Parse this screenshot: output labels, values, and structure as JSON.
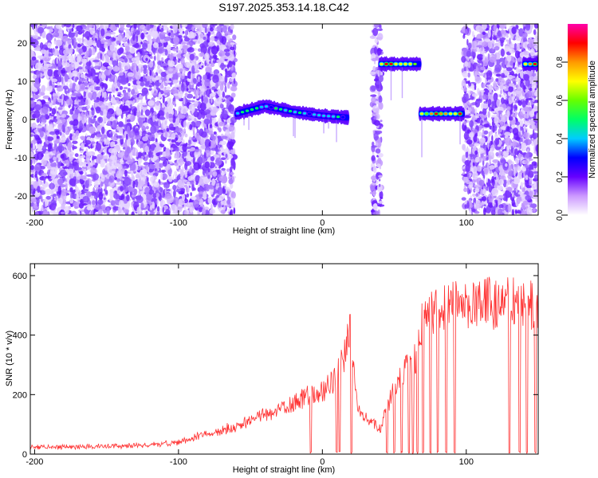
{
  "title": "S197.2025.353.14.18.C42",
  "chart_data": [
    {
      "type": "heatmap",
      "xlabel": "Height of straight line (km)",
      "ylabel": "Frequency (Hz)",
      "xlim": [
        -203,
        150
      ],
      "ylim": [
        -25,
        25
      ],
      "xticks": [
        -200,
        -100,
        0,
        100
      ],
      "yticks": [
        -20,
        -10,
        0,
        10,
        20
      ],
      "colorbar": {
        "label": "Normalized spectral amplitude",
        "range": [
          0,
          1
        ],
        "ticks": [
          0.0,
          0.2,
          0.4,
          0.6,
          0.8
        ],
        "colors": [
          "#ffffff",
          "#cc99ff",
          "#6600ff",
          "#0000ff",
          "#00ccff",
          "#00ff66",
          "#66ff00",
          "#ffff00",
          "#ff9900",
          "#ff0000",
          "#ff00aa"
        ]
      },
      "noise_regions": [
        [
          -203,
          -61
        ],
        [
          35,
          41
        ],
        [
          98,
          141
        ],
        [
          140,
          150
        ]
      ],
      "tracks": [
        {
          "x": [
            -60,
            -40,
            -20,
            0,
            18
          ],
          "y": [
            1.5,
            3.5,
            2.0,
            1.0,
            0.5
          ],
          "peak": 0.55
        },
        {
          "x": [
            40,
            68
          ],
          "y": [
            14.5,
            14.5
          ],
          "peak": 0.95
        },
        {
          "x": [
            68,
            98
          ],
          "y": [
            1.5,
            1.5
          ],
          "peak": 0.9
        },
        {
          "x": [
            140,
            150
          ],
          "y": [
            14.5,
            14.5
          ],
          "peak": 0.95
        }
      ],
      "grid": false
    },
    {
      "type": "line",
      "xlabel": "Height of straight line (km)",
      "ylabel": "SNR (10 * v/v)",
      "xlim": [
        -203,
        150
      ],
      "ylim": [
        0,
        640
      ],
      "xticks": [
        -200,
        -100,
        0,
        100
      ],
      "yticks": [
        0,
        200,
        400,
        600
      ],
      "series": [
        {
          "color": "#ff3333",
          "x": [
            -203,
            -180,
            -150,
            -120,
            -100,
            -90,
            -80,
            -70,
            -60,
            -50,
            -40,
            -30,
            -20,
            -10,
            0,
            5,
            10,
            15,
            19,
            22,
            25,
            30,
            35,
            40,
            45,
            50,
            55,
            60,
            65,
            70,
            80,
            90,
            100,
            110,
            120,
            130,
            140,
            150
          ],
          "y": [
            22,
            24,
            26,
            30,
            40,
            55,
            65,
            80,
            90,
            110,
            130,
            150,
            170,
            200,
            210,
            230,
            270,
            330,
            420,
            280,
            150,
            120,
            110,
            80,
            150,
            230,
            270,
            300,
            320,
            460,
            490,
            520,
            500,
            510,
            505,
            510,
            515,
            510
          ]
        }
      ],
      "dropouts": [
        -8,
        10,
        12,
        20,
        45,
        50,
        55,
        60,
        63,
        66,
        70,
        75,
        80,
        86,
        92,
        130,
        137,
        142,
        148
      ],
      "grid": false
    }
  ]
}
